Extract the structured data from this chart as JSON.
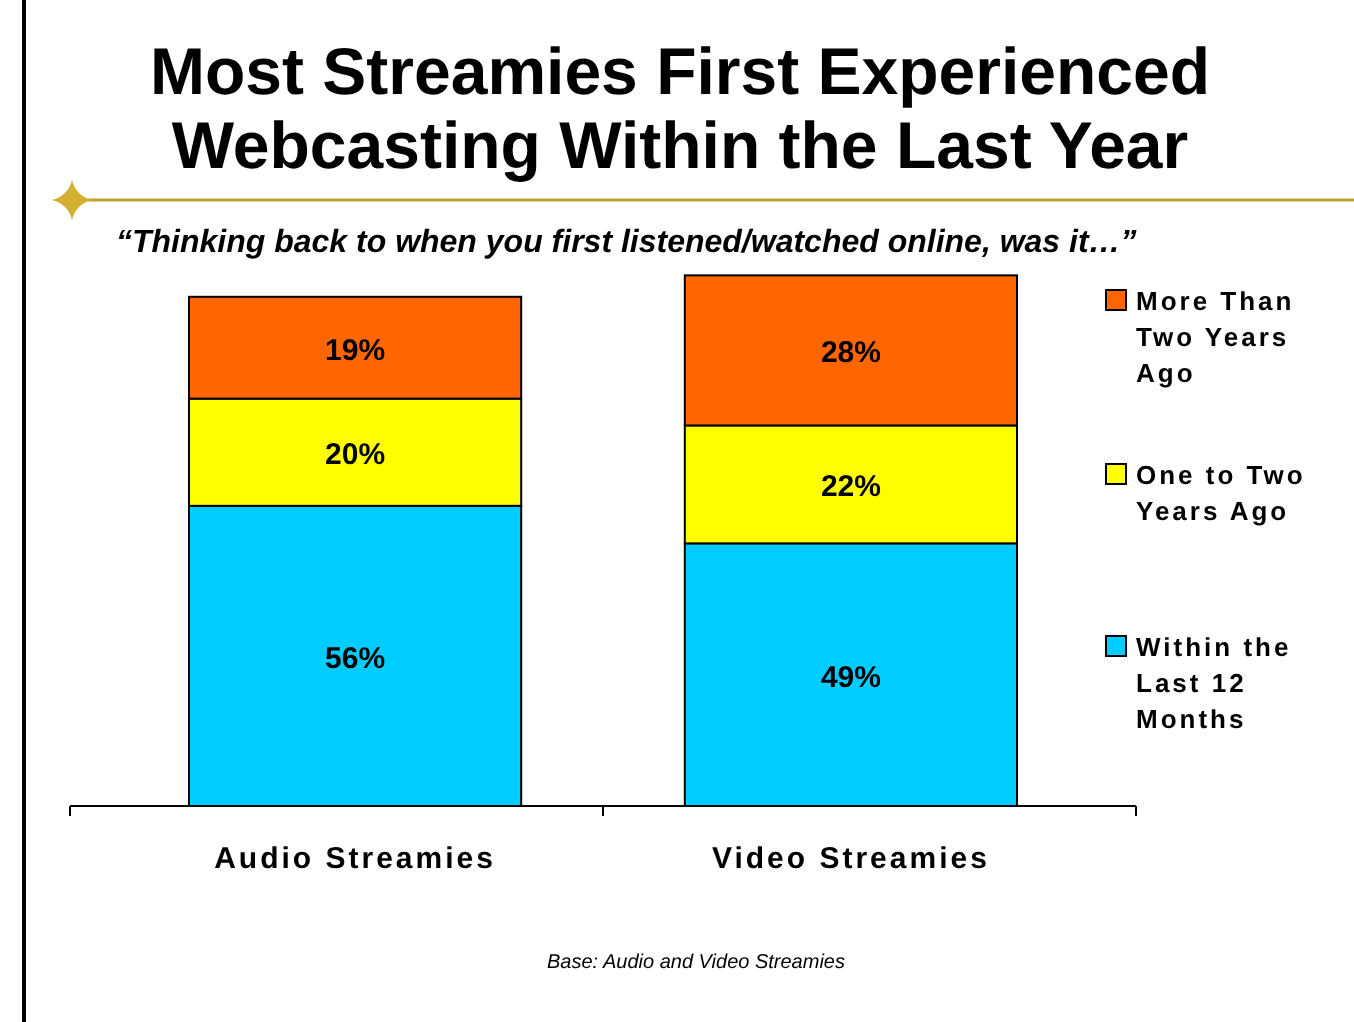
{
  "chart_data": {
    "type": "bar",
    "title": "Most Streamies First Experienced Webcasting Within the Last Year",
    "subtitle": "“Thinking back to when you first listened/watched online, was it…”",
    "categories": [
      "Audio Streamies",
      "Video Streamies"
    ],
    "stacked": true,
    "ylim": [
      0,
      100
    ],
    "tick_labels": "x",
    "legend": "right",
    "series": [
      {
        "name": "Within the Last 12 Months",
        "color": "#00ccff",
        "values": [
          56,
          49
        ],
        "value_labels": [
          "56%",
          "49%"
        ]
      },
      {
        "name": "One to Two Years Ago",
        "color": "#ffff00",
        "values": [
          20,
          22
        ],
        "value_labels": [
          "20%",
          "22%"
        ]
      },
      {
        "name": "More Than Two Years Ago",
        "color": "#ff6600",
        "values": [
          19,
          28
        ],
        "value_labels": [
          "19%",
          "28%"
        ]
      }
    ],
    "annotations": [
      "Base: Audio and Video Streamies"
    ]
  }
}
